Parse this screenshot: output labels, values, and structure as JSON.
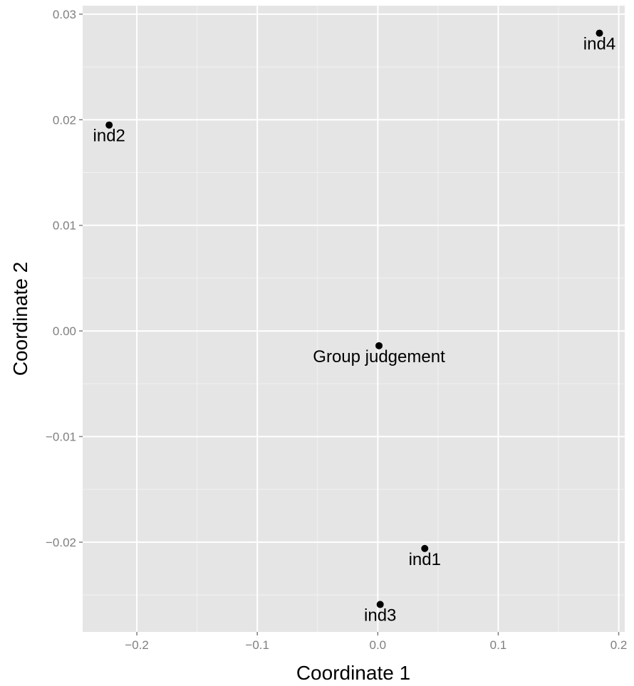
{
  "chart_data": {
    "type": "scatter",
    "title": "",
    "xlabel": "Coordinate 1",
    "ylabel": "Coordinate 2",
    "xlim": [
      -0.245,
      0.205
    ],
    "ylim": [
      -0.0285,
      0.0308
    ],
    "x_ticks": [
      -0.2,
      -0.1,
      0.0,
      0.1,
      0.2
    ],
    "x_tick_labels": [
      "−0.2",
      "−0.1",
      "0.0",
      "0.1",
      "0.2"
    ],
    "y_ticks": [
      -0.02,
      -0.01,
      0.0,
      0.01,
      0.02,
      0.03
    ],
    "y_tick_labels": [
      "−0.02",
      "−0.01",
      "0.00",
      "0.01",
      "0.02",
      "0.03"
    ],
    "grid": true,
    "points": [
      {
        "label": "ind4",
        "x": 0.184,
        "y": 0.0282
      },
      {
        "label": "ind2",
        "x": -0.223,
        "y": 0.0195
      },
      {
        "label": "Group judgement",
        "x": 0.001,
        "y": -0.0014
      },
      {
        "label": "ind1",
        "x": 0.039,
        "y": -0.0206
      },
      {
        "label": "ind3",
        "x": 0.002,
        "y": -0.0259
      }
    ]
  },
  "colors": {
    "panel_background": "#e5e5e5",
    "grid_major": "#ffffff",
    "grid_minor": "#f2f2f2",
    "point": "#000000",
    "tick_label": "#7f7f7f",
    "axis_title": "#000000"
  }
}
